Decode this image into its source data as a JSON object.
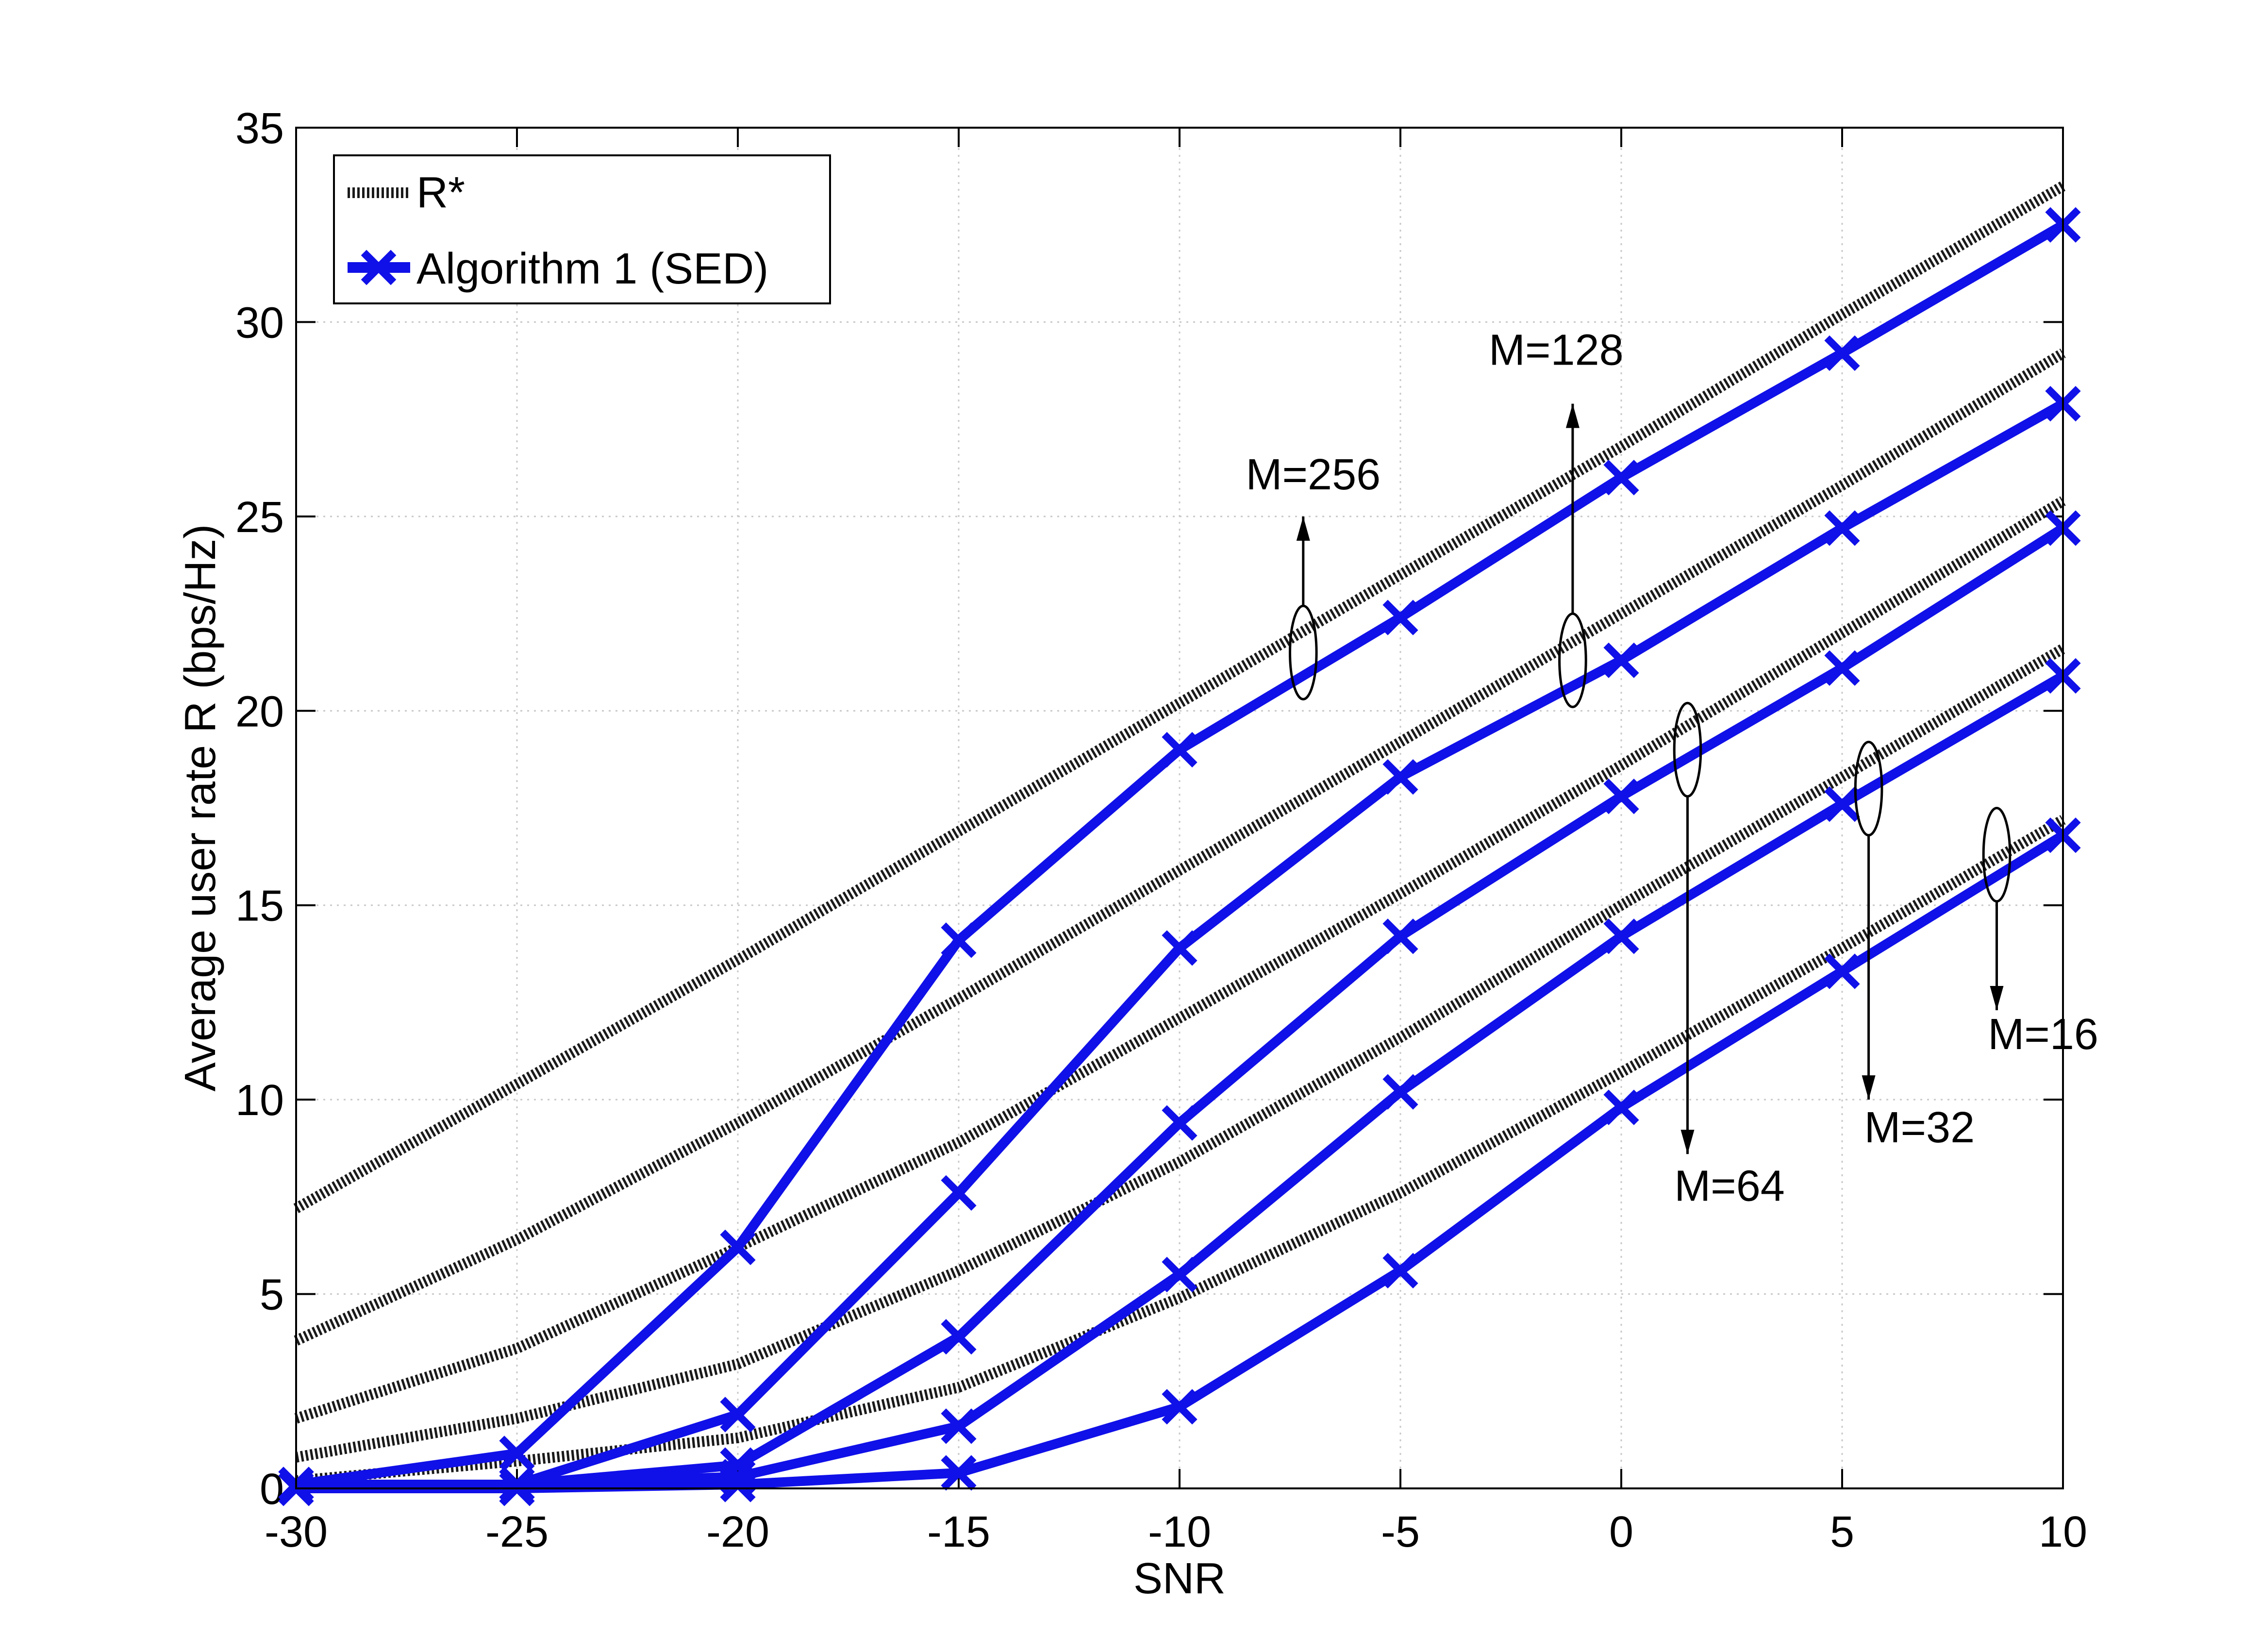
{
  "chart_data": {
    "type": "line",
    "xlabel": "SNR",
    "ylabel": "Average user rate R (bps/Hz)",
    "xlim": [
      -30,
      10
    ],
    "ylim": [
      0,
      35
    ],
    "xticks": [
      -30,
      -25,
      -20,
      -15,
      -10,
      -5,
      0,
      5,
      10
    ],
    "yticks": [
      0,
      5,
      10,
      15,
      20,
      25,
      30,
      35
    ],
    "grid": true,
    "legend": {
      "placement": "top-left",
      "entries": [
        {
          "label": "R*",
          "style": "dotted",
          "color": "#1a1a1a"
        },
        {
          "label": "Algorithm  1 (SED)",
          "style": "solid-x",
          "color": "#1010e8"
        }
      ]
    },
    "x": [
      -30,
      -25,
      -20,
      -15,
      -10,
      -5,
      0,
      5,
      10
    ],
    "series": [
      {
        "group": "M=256",
        "kind": "R*",
        "values": [
          7.2,
          10.4,
          13.6,
          16.9,
          20.2,
          23.5,
          26.8,
          30.2,
          33.5
        ]
      },
      {
        "group": "M=256",
        "kind": "Algorithm 1 (SED)",
        "values": [
          0.1,
          0.9,
          6.2,
          14.1,
          19.0,
          22.4,
          26.0,
          29.2,
          32.5
        ]
      },
      {
        "group": "M=128",
        "kind": "R*",
        "values": [
          3.8,
          6.4,
          9.4,
          12.6,
          15.9,
          19.2,
          22.5,
          25.8,
          29.2
        ]
      },
      {
        "group": "M=128",
        "kind": "Algorithm 1 (SED)",
        "values": [
          0.1,
          0.1,
          1.9,
          7.6,
          13.9,
          18.3,
          21.3,
          24.7,
          27.9
        ]
      },
      {
        "group": "M=64",
        "kind": "R*",
        "values": [
          1.8,
          3.6,
          6.2,
          8.9,
          12.1,
          15.3,
          18.6,
          22.0,
          25.4
        ]
      },
      {
        "group": "M=64",
        "kind": "Algorithm 1 (SED)",
        "values": [
          0.1,
          0.1,
          0.6,
          3.9,
          9.4,
          14.2,
          17.8,
          21.1,
          24.7
        ]
      },
      {
        "group": "M=32",
        "kind": "R*",
        "values": [
          0.8,
          1.8,
          3.2,
          5.6,
          8.4,
          11.6,
          15.0,
          18.3,
          21.6
        ]
      },
      {
        "group": "M=32",
        "kind": "Algorithm 1 (SED)",
        "values": [
          0.1,
          0.1,
          0.3,
          1.6,
          5.5,
          10.2,
          14.2,
          17.6,
          20.9
        ]
      },
      {
        "group": "M=16",
        "kind": "R*",
        "values": [
          0.2,
          0.7,
          1.3,
          2.6,
          4.9,
          7.6,
          10.7,
          13.9,
          17.2
        ]
      },
      {
        "group": "M=16",
        "kind": "Algorithm 1 (SED)",
        "values": [
          0.0,
          0.0,
          0.1,
          0.4,
          2.1,
          5.6,
          9.8,
          13.3,
          16.8
        ]
      }
    ],
    "annotations": [
      {
        "text": "M=256",
        "x": -8.5,
        "y": 25.7,
        "ellipse": {
          "x": -7.2,
          "y": 21.5,
          "rx": 0.3,
          "ry": 1.2
        },
        "arrow_to": [
          -7.2,
          25.0
        ]
      },
      {
        "text": "M=128",
        "x": -3.0,
        "y": 28.9,
        "ellipse": {
          "x": -1.1,
          "y": 21.3,
          "rx": 0.3,
          "ry": 1.2
        },
        "arrow_to": [
          -1.1,
          27.9
        ]
      },
      {
        "text": "M=64",
        "x": 1.2,
        "y": 7.4,
        "ellipse": {
          "x": 1.5,
          "y": 19.0,
          "rx": 0.3,
          "ry": 1.2
        },
        "arrow_to": [
          1.5,
          8.6
        ]
      },
      {
        "text": "M=32",
        "x": 5.5,
        "y": 8.9,
        "ellipse": {
          "x": 5.6,
          "y": 18.0,
          "rx": 0.3,
          "ry": 1.2
        },
        "arrow_to": [
          5.6,
          10.0
        ]
      },
      {
        "text": "M=16",
        "x": 8.3,
        "y": 11.3,
        "ellipse": {
          "x": 8.5,
          "y": 16.3,
          "rx": 0.3,
          "ry": 1.2
        },
        "arrow_to": [
          8.5,
          12.3
        ]
      }
    ]
  }
}
